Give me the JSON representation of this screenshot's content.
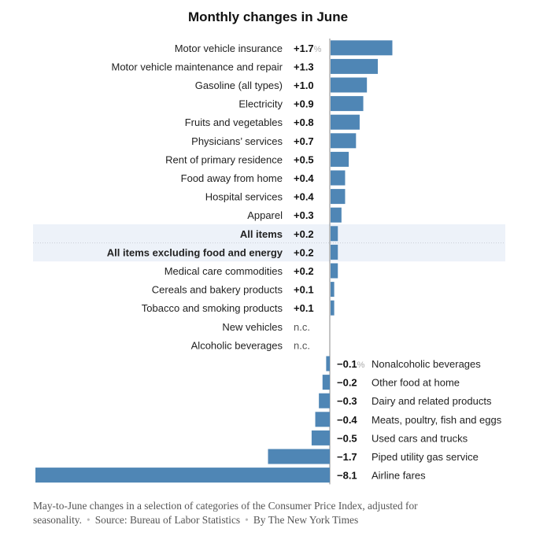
{
  "chart_data": {
    "type": "bar",
    "orientation": "horizontal",
    "title": "Monthly changes in June",
    "unit": "%",
    "bar_color": "#4f86b5",
    "highlight_color": "#edf2f9",
    "items": [
      {
        "label": "Motor vehicle insurance",
        "value": 1.7,
        "display": "+1.7",
        "unit": "%"
      },
      {
        "label": "Motor vehicle maintenance and repair",
        "value": 1.3,
        "display": "+1.3"
      },
      {
        "label": "Gasoline (all types)",
        "value": 1.0,
        "display": "+1.0"
      },
      {
        "label": "Electricity",
        "value": 0.9,
        "display": "+0.9"
      },
      {
        "label": "Fruits and vegetables",
        "value": 0.8,
        "display": "+0.8"
      },
      {
        "label": "Physicians’ services",
        "value": 0.7,
        "display": "+0.7"
      },
      {
        "label": "Rent of primary residence",
        "value": 0.5,
        "display": "+0.5"
      },
      {
        "label": "Food away from home",
        "value": 0.4,
        "display": "+0.4"
      },
      {
        "label": "Hospital services",
        "value": 0.4,
        "display": "+0.4"
      },
      {
        "label": "Apparel",
        "value": 0.3,
        "display": "+0.3"
      },
      {
        "label": "All items",
        "value": 0.2,
        "display": "+0.2",
        "highlight": true,
        "bold": true
      },
      {
        "label": "All items excluding food and energy",
        "value": 0.2,
        "display": "+0.2",
        "highlight": true,
        "bold": true
      },
      {
        "label": "Medical care commodities",
        "value": 0.2,
        "display": "+0.2"
      },
      {
        "label": "Cereals and bakery products",
        "value": 0.1,
        "display": "+0.1"
      },
      {
        "label": "Tobacco and smoking products",
        "value": 0.1,
        "display": "+0.1"
      },
      {
        "label": "New vehicles",
        "value": 0,
        "display": "n.c.",
        "nochange": true
      },
      {
        "label": "Alcoholic beverages",
        "value": 0,
        "display": "n.c.",
        "nochange": true
      },
      {
        "label": "Nonalcoholic beverages",
        "value": -0.1,
        "display": "−0.1",
        "unit": "%"
      },
      {
        "label": "Other food at home",
        "value": -0.2,
        "display": "−0.2"
      },
      {
        "label": "Dairy and related products",
        "value": -0.3,
        "display": "−0.3"
      },
      {
        "label": "Meats, poultry, fish and eggs",
        "value": -0.4,
        "display": "−0.4"
      },
      {
        "label": "Used cars and trucks",
        "value": -0.5,
        "display": "−0.5"
      },
      {
        "label": "Piped utility gas service",
        "value": -1.7,
        "display": "−1.7"
      },
      {
        "label": "Airline fares",
        "value": -8.1,
        "display": "−8.1"
      }
    ]
  },
  "caption": {
    "text": "May-to-June changes in a selection of categories of the Consumer Price Index, adjusted for seasonality.",
    "source": "Source: Bureau of Labor Statistics",
    "credit": "By The New York Times"
  }
}
